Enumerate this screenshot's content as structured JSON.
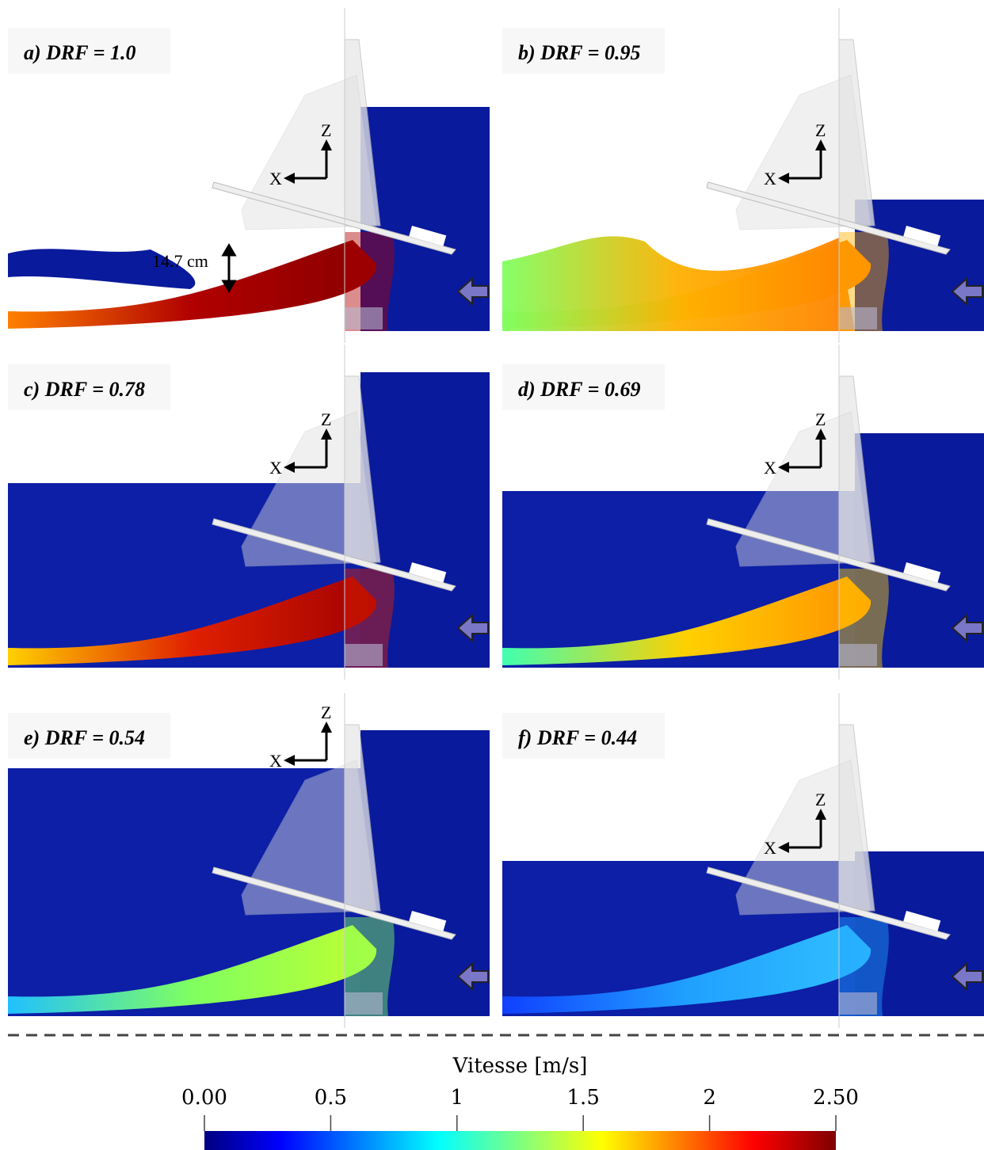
{
  "panels": [
    {
      "label": "a) DRF = 1.0"
    },
    {
      "label": "b) DRF = 0.95"
    },
    {
      "label": "c) DRF = 0.78"
    },
    {
      "label": "d) DRF = 0.69"
    },
    {
      "label": "e) DRF = 0.54"
    },
    {
      "label": "f) DRF = 0.44"
    }
  ],
  "annotation": "14.7 cm",
  "axes": {
    "x": "X",
    "z": "Z"
  },
  "colorbar": {
    "title": "Vitesse [m/s]",
    "lim": [
      0,
      2.5
    ],
    "ticks": [
      {
        "value": 0,
        "label": "0.00"
      },
      0.5,
      1,
      1.5,
      2,
      {
        "value": 2.5,
        "label": "2.50"
      }
    ]
  }
}
